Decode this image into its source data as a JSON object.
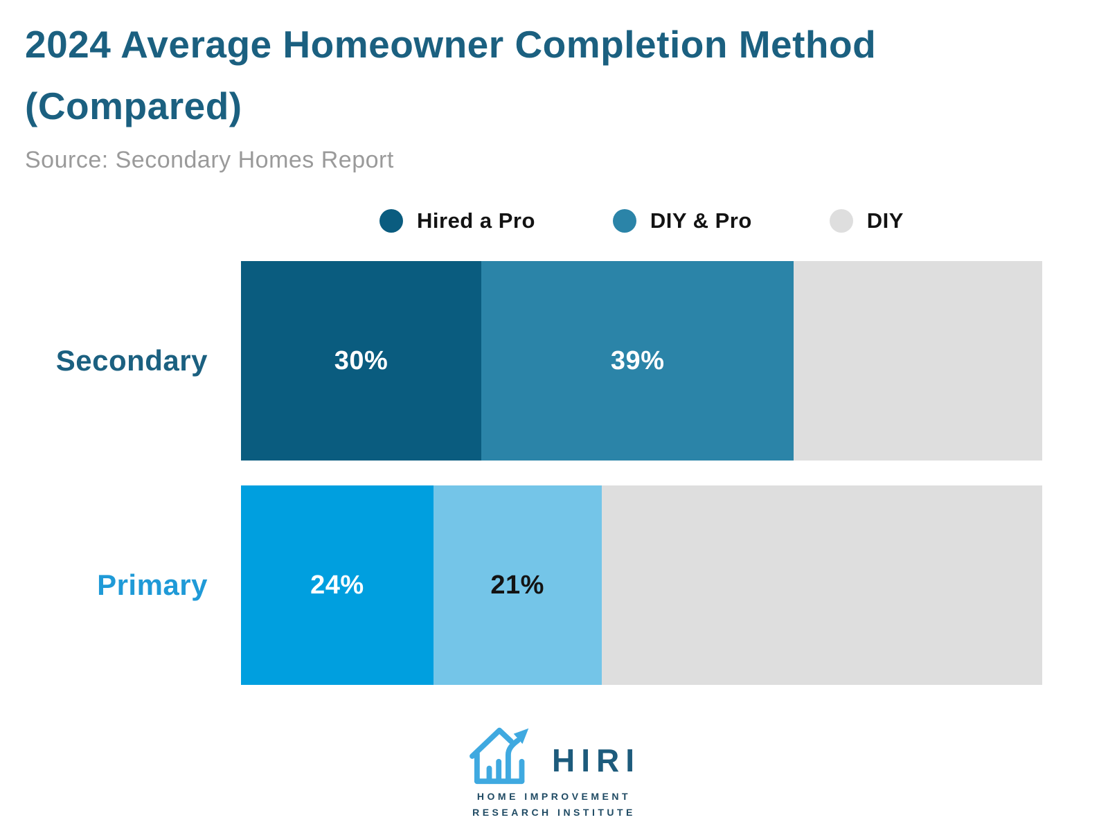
{
  "title": "2024 Average Homeowner Completion Method (Compared)",
  "source": "Source: Secondary Homes Report",
  "colors": {
    "title": "#1B6080",
    "source_text": "#9A9A9A",
    "legend_text": "#131313",
    "dark_teal": "#0A5C7F",
    "medium_teal": "#2B84A8",
    "bright_blue": "#009FDF",
    "light_blue": "#74C5E8",
    "remainder_gray": "#DEDEDE",
    "secondary_label": "#1B6080",
    "primary_label": "#1F9AD7",
    "logo_blue": "#3FA9E0",
    "logo_text": "#1D5B7C"
  },
  "legend": [
    {
      "label": "Hired a Pro",
      "color": "#0A5C7F"
    },
    {
      "label": "DIY & Pro",
      "color": "#2B84A8"
    },
    {
      "label": "DIY",
      "color": "#DEDEDE"
    }
  ],
  "chart_data": {
    "type": "bar",
    "orientation": "horizontal-stacked",
    "title": "2024 Average Homeowner Completion Method (Compared)",
    "categories": [
      "Secondary",
      "Primary"
    ],
    "series": [
      {
        "name": "Hired a Pro",
        "values": [
          30,
          24
        ]
      },
      {
        "name": "DIY & Pro",
        "values": [
          39,
          21
        ]
      },
      {
        "name": "DIY",
        "values": [
          31,
          55
        ]
      }
    ],
    "xlim": [
      0,
      100
    ],
    "unit": "%",
    "grid": false,
    "legend_position": "top-center",
    "value_labels_shown": [
      "30%",
      "39%",
      "24%",
      "21%"
    ]
  },
  "rows": [
    {
      "label": "Secondary",
      "label_color": "#1B6080",
      "segments": [
        {
          "value": 30,
          "label": "30%",
          "color": "#0A5C7F",
          "text_color": "#FFFFFF"
        },
        {
          "value": 39,
          "label": "39%",
          "color": "#2B84A8",
          "text_color": "#FFFFFF"
        },
        {
          "value": 31,
          "label": "",
          "color": "#DEDEDE",
          "text_color": "#131313"
        }
      ]
    },
    {
      "label": "Primary",
      "label_color": "#1F9AD7",
      "segments": [
        {
          "value": 24,
          "label": "24%",
          "color": "#009FDF",
          "text_color": "#FFFFFF"
        },
        {
          "value": 21,
          "label": "21%",
          "color": "#74C5E8",
          "text_color": "#131313"
        },
        {
          "value": 55,
          "label": "",
          "color": "#DEDEDE",
          "text_color": "#131313"
        }
      ]
    }
  ],
  "logo": {
    "text": "HIRI",
    "sub_line1": "HOME IMPROVEMENT",
    "sub_line2": "RESEARCH INSTITUTE"
  }
}
